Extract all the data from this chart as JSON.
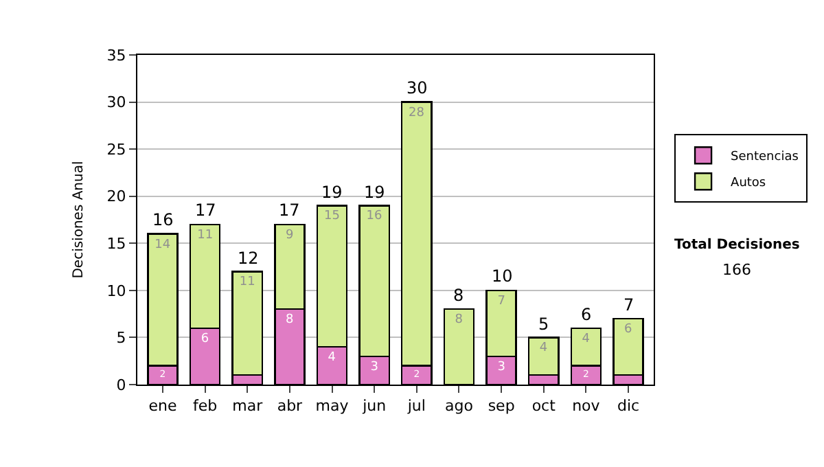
{
  "chart_data": {
    "type": "bar",
    "stacked": true,
    "ylabel": "Decisiones Anual",
    "categories": [
      "ene",
      "feb",
      "mar",
      "abr",
      "may",
      "jun",
      "jul",
      "ago",
      "sep",
      "oct",
      "nov",
      "dic"
    ],
    "series": [
      {
        "name": "Sentencias",
        "color": "#e07cc4",
        "values": [
          2,
          6,
          1,
          8,
          4,
          3,
          2,
          0,
          3,
          1,
          2,
          1
        ],
        "value_labels": [
          "2",
          "6",
          null,
          "8",
          "4",
          "3",
          "2",
          null,
          "3",
          null,
          "2",
          null
        ]
      },
      {
        "name": "Autos",
        "color": "#d4ec94",
        "values": [
          14,
          11,
          11,
          9,
          15,
          16,
          28,
          8,
          7,
          4,
          4,
          6
        ],
        "value_labels": [
          "14",
          "11",
          "11",
          "9",
          "15",
          "16",
          "28",
          "8",
          "7",
          "4",
          "4",
          "6"
        ]
      }
    ],
    "totals": [
      "16",
      "17",
      "12",
      "17",
      "19",
      "19",
      "30",
      "8",
      "10",
      "5",
      "6",
      "7"
    ],
    "ylim": [
      0,
      35
    ],
    "yticks": [
      0,
      5,
      10,
      15,
      20,
      25,
      30,
      35
    ],
    "grid": "y",
    "legend": "right",
    "annotations": [
      "Total Decisiones",
      "166"
    ]
  }
}
